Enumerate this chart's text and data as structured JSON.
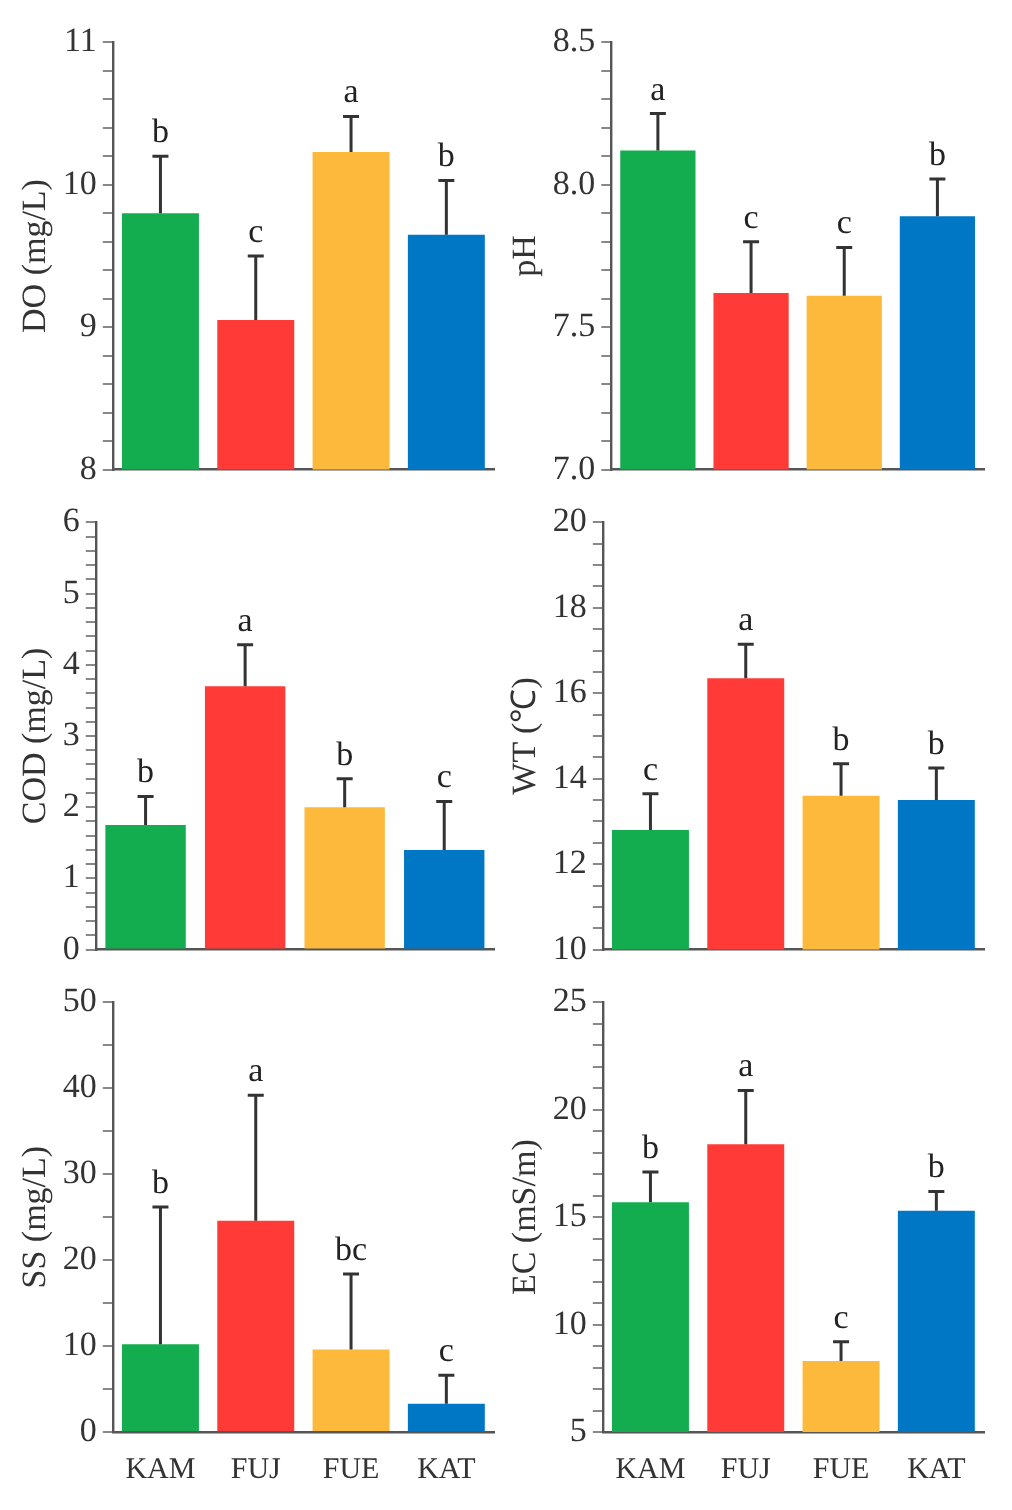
{
  "chart_data": [
    {
      "type": "bar",
      "ylabel": "DO (mg/L)",
      "categories": [
        "KAM",
        "FUJ",
        "FUE",
        "KAT"
      ],
      "values": [
        9.8,
        9.05,
        10.23,
        9.65
      ],
      "colors": [
        "#13ad4f",
        "#ff3a37",
        "#fdb93c",
        "#0077c4"
      ],
      "errors": [
        [
          9.8,
          10.2
        ],
        [
          9.05,
          9.5
        ],
        [
          10.23,
          10.48
        ],
        [
          9.65,
          10.03
        ]
      ],
      "ylim": [
        8,
        11
      ],
      "yticks": [
        8,
        {
          "value": 8.2,
          "label": null
        },
        {
          "value": 8.4,
          "label": null
        },
        {
          "value": 8.6,
          "label": null
        },
        {
          "value": 8.8,
          "label": null
        },
        9,
        {
          "value": 9.2,
          "label": null
        },
        {
          "value": 9.4,
          "label": null
        },
        {
          "value": 9.6,
          "label": null
        },
        {
          "value": 9.8,
          "label": null
        },
        10,
        {
          "value": 10.2,
          "label": null
        },
        {
          "value": 10.4,
          "label": null
        },
        {
          "value": 10.6,
          "label": null
        },
        {
          "value": 10.8,
          "label": null
        },
        11
      ],
      "tick_labels": "y",
      "grid": false,
      "legend": false,
      "annotations": [
        {
          "text": "b",
          "x": "KAM",
          "y": 10.2
        },
        {
          "text": "c",
          "x": "FUJ",
          "y": 9.5
        },
        {
          "text": "a",
          "x": "FUE",
          "y": 10.48
        },
        {
          "text": "b",
          "x": "KAT",
          "y": 10.03
        }
      ]
    },
    {
      "type": "bar",
      "ylabel": "pH",
      "categories": [
        "KAM",
        "FUJ",
        "FUE",
        "KAT"
      ],
      "values": [
        8.12,
        7.62,
        7.61,
        7.89
      ],
      "colors": [
        "#13ad4f",
        "#ff3a37",
        "#fdb93c",
        "#0077c4"
      ],
      "errors": [
        [
          8.12,
          8.25
        ],
        [
          7.62,
          7.8
        ],
        [
          7.61,
          7.78
        ],
        [
          7.89,
          8.02
        ]
      ],
      "ylim": [
        7,
        8.5
      ],
      "yticks": [
        {
          "value": 7,
          "label": "7.0"
        },
        {
          "value": 7.1,
          "label": null
        },
        {
          "value": 7.2,
          "label": null
        },
        {
          "value": 7.3,
          "label": null
        },
        {
          "value": 7.4,
          "label": null
        },
        7.5,
        {
          "value": 7.6,
          "label": null
        },
        {
          "value": 7.7,
          "label": null
        },
        {
          "value": 7.8,
          "label": null
        },
        {
          "value": 7.9,
          "label": null
        },
        {
          "value": 8,
          "label": "8.0"
        },
        {
          "value": 8.1,
          "label": null
        },
        {
          "value": 8.2,
          "label": null
        },
        {
          "value": 8.3,
          "label": null
        },
        {
          "value": 8.4,
          "label": null
        },
        8.5
      ],
      "tick_labels": "y",
      "grid": false,
      "legend": false,
      "annotations": [
        {
          "text": "a",
          "x": "KAM",
          "y": 8.25
        },
        {
          "text": "c",
          "x": "FUJ",
          "y": 7.8
        },
        {
          "text": "c",
          "x": "FUE",
          "y": 7.78
        },
        {
          "text": "b",
          "x": "KAT",
          "y": 8.02
        }
      ]
    },
    {
      "type": "bar",
      "ylabel": "COD (mg/L)",
      "categories": [
        "KAM",
        "FUJ",
        "FUE",
        "KAT"
      ],
      "values": [
        1.75,
        3.7,
        2.0,
        1.4
      ],
      "colors": [
        "#13ad4f",
        "#ff3a37",
        "#fdb93c",
        "#0077c4"
      ],
      "errors": [
        [
          1.75,
          2.15
        ],
        [
          3.7,
          4.28
        ],
        [
          2.0,
          2.4
        ],
        [
          1.4,
          2.08
        ]
      ],
      "ylim": [
        0,
        6
      ],
      "yticks": [
        0,
        {
          "value": 0.2,
          "label": null
        },
        {
          "value": 0.4,
          "label": null
        },
        {
          "value": 0.6,
          "label": null
        },
        {
          "value": 0.8,
          "label": null
        },
        1,
        {
          "value": 1.2,
          "label": null
        },
        {
          "value": 1.4,
          "label": null
        },
        {
          "value": 1.6,
          "label": null
        },
        {
          "value": 1.8,
          "label": null
        },
        2,
        {
          "value": 2.2,
          "label": null
        },
        {
          "value": 2.4,
          "label": null
        },
        {
          "value": 2.6,
          "label": null
        },
        {
          "value": 2.8,
          "label": null
        },
        3,
        {
          "value": 3.2,
          "label": null
        },
        {
          "value": 3.4,
          "label": null
        },
        {
          "value": 3.6,
          "label": null
        },
        {
          "value": 3.8,
          "label": null
        },
        4,
        {
          "value": 4.2,
          "label": null
        },
        {
          "value": 4.4,
          "label": null
        },
        {
          "value": 4.6,
          "label": null
        },
        {
          "value": 4.8,
          "label": null
        },
        5,
        {
          "value": 5.2,
          "label": null
        },
        {
          "value": 5.4,
          "label": null
        },
        {
          "value": 5.6,
          "label": null
        },
        {
          "value": 5.8,
          "label": null
        },
        6
      ],
      "tick_labels": "y",
      "grid": false,
      "legend": false,
      "annotations": [
        {
          "text": "b",
          "x": "KAM",
          "y": 2.15
        },
        {
          "text": "a",
          "x": "FUJ",
          "y": 4.28
        },
        {
          "text": "b",
          "x": "FUE",
          "y": 2.4
        },
        {
          "text": "c",
          "x": "KAT",
          "y": 2.08
        }
      ]
    },
    {
      "type": "bar",
      "ylabel": "WT (℃)",
      "categories": [
        "KAM",
        "FUJ",
        "FUE",
        "KAT"
      ],
      "values": [
        12.8,
        16.35,
        13.6,
        13.5
      ],
      "colors": [
        "#13ad4f",
        "#ff3a37",
        "#fdb93c",
        "#0077c4"
      ],
      "errors": [
        [
          12.8,
          13.65
        ],
        [
          16.35,
          17.15
        ],
        [
          13.6,
          14.35
        ],
        [
          13.5,
          14.25
        ]
      ],
      "ylim": [
        10,
        20
      ],
      "yticks": [
        10,
        {
          "value": 10.5,
          "label": null
        },
        {
          "value": 11,
          "label": null
        },
        {
          "value": 11.5,
          "label": null
        },
        12,
        {
          "value": 12.5,
          "label": null
        },
        {
          "value": 13,
          "label": null
        },
        {
          "value": 13.5,
          "label": null
        },
        14,
        {
          "value": 14.5,
          "label": null
        },
        {
          "value": 15,
          "label": null
        },
        {
          "value": 15.5,
          "label": null
        },
        16,
        {
          "value": 16.5,
          "label": null
        },
        {
          "value": 17,
          "label": null
        },
        {
          "value": 17.5,
          "label": null
        },
        18,
        {
          "value": 18.5,
          "label": null
        },
        {
          "value": 19,
          "label": null
        },
        {
          "value": 19.5,
          "label": null
        },
        20
      ],
      "tick_labels": "y",
      "grid": false,
      "legend": false,
      "annotations": [
        {
          "text": "c",
          "x": "KAM",
          "y": 13.65
        },
        {
          "text": "a",
          "x": "FUJ",
          "y": 17.15
        },
        {
          "text": "b",
          "x": "FUE",
          "y": 14.35
        },
        {
          "text": "b",
          "x": "KAT",
          "y": 14.25
        }
      ]
    },
    {
      "type": "bar",
      "ylabel": "SS (mg/L)",
      "categories": [
        "KAM",
        "FUJ",
        "FUE",
        "KAT"
      ],
      "values": [
        10.2,
        24.6,
        9.6,
        3.3
      ],
      "colors": [
        "#13ad4f",
        "#ff3a37",
        "#fdb93c",
        "#0077c4"
      ],
      "errors": [
        [
          10.2,
          26.2
        ],
        [
          24.6,
          39.2
        ],
        [
          9.6,
          18.4
        ],
        [
          3.3,
          6.6
        ]
      ],
      "ylim": [
        0,
        50
      ],
      "yticks": [
        0,
        {
          "value": 5,
          "label": null
        },
        10,
        {
          "value": 15,
          "label": null
        },
        20,
        {
          "value": 25,
          "label": null
        },
        30,
        {
          "value": 35,
          "label": null
        },
        40,
        {
          "value": 45,
          "label": null
        },
        50
      ],
      "grid": false,
      "legend": false,
      "annotations": [
        {
          "text": "b",
          "x": "KAM",
          "y": 26.2
        },
        {
          "text": "a",
          "x": "FUJ",
          "y": 39.2
        },
        {
          "text": "bc",
          "x": "FUE",
          "y": 18.4
        },
        {
          "text": "c",
          "x": "KAT",
          "y": 6.6
        }
      ]
    },
    {
      "type": "bar",
      "ylabel": "EC (mS/m)",
      "categories": [
        "KAM",
        "FUJ",
        "FUE",
        "KAT"
      ],
      "values": [
        15.7,
        18.4,
        8.3,
        15.3
      ],
      "colors": [
        "#13ad4f",
        "#ff3a37",
        "#fdb93c",
        "#0077c4"
      ],
      "errors": [
        [
          15.7,
          17.1
        ],
        [
          18.4,
          20.9
        ],
        [
          8.3,
          9.2
        ],
        [
          15.3,
          16.2
        ]
      ],
      "ylim": [
        5,
        25
      ],
      "yticks": [
        5,
        {
          "value": 6,
          "label": null
        },
        {
          "value": 7,
          "label": null
        },
        {
          "value": 8,
          "label": null
        },
        {
          "value": 9,
          "label": null
        },
        10,
        {
          "value": 11,
          "label": null
        },
        {
          "value": 12,
          "label": null
        },
        {
          "value": 13,
          "label": null
        },
        {
          "value": 14,
          "label": null
        },
        15,
        {
          "value": 16,
          "label": null
        },
        {
          "value": 17,
          "label": null
        },
        {
          "value": 18,
          "label": null
        },
        {
          "value": 19,
          "label": null
        },
        20,
        {
          "value": 21,
          "label": null
        },
        {
          "value": 22,
          "label": null
        },
        {
          "value": 23,
          "label": null
        },
        {
          "value": 24,
          "label": null
        },
        25
      ],
      "grid": false,
      "legend": false,
      "annotations": [
        {
          "text": "b",
          "x": "KAM",
          "y": 17.1
        },
        {
          "text": "a",
          "x": "FUJ",
          "y": 20.9
        },
        {
          "text": "c",
          "x": "FUE",
          "y": 9.2
        },
        {
          "text": "b",
          "x": "KAT",
          "y": 16.2
        }
      ]
    }
  ]
}
